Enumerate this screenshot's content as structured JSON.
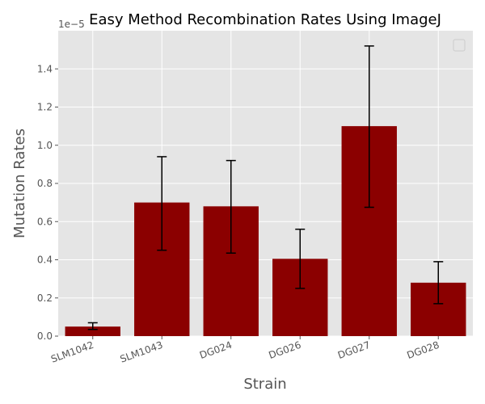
{
  "chart_data": {
    "type": "bar",
    "title": "Easy Method Recombination Rates Using ImageJ",
    "xlabel": "Strain",
    "ylabel": "Mutation Rates",
    "offset_label": "1e−5",
    "categories": [
      "SLM1042",
      "SLM1043",
      "DG024",
      "DG026",
      "DG027",
      "DG028"
    ],
    "values": [
      0.05,
      0.7,
      0.68,
      0.405,
      1.1,
      0.28
    ],
    "error_low": [
      0.035,
      0.45,
      0.435,
      0.25,
      0.675,
      0.17
    ],
    "error_high": [
      0.07,
      0.94,
      0.92,
      0.56,
      1.52,
      0.39
    ],
    "ylim": [
      0,
      1.6
    ],
    "yticks": [
      "0.0",
      "0.2",
      "0.4",
      "0.6",
      "0.8",
      "1.0",
      "1.2",
      "1.4"
    ],
    "grid": true,
    "legend": "top-right",
    "colors": {
      "bar": "#8b0000",
      "errorbar": "#000000",
      "plot_background": "#e5e5e5",
      "grid": "#ffffff",
      "tick_text": "#555555",
      "label_text": "#555555"
    }
  }
}
